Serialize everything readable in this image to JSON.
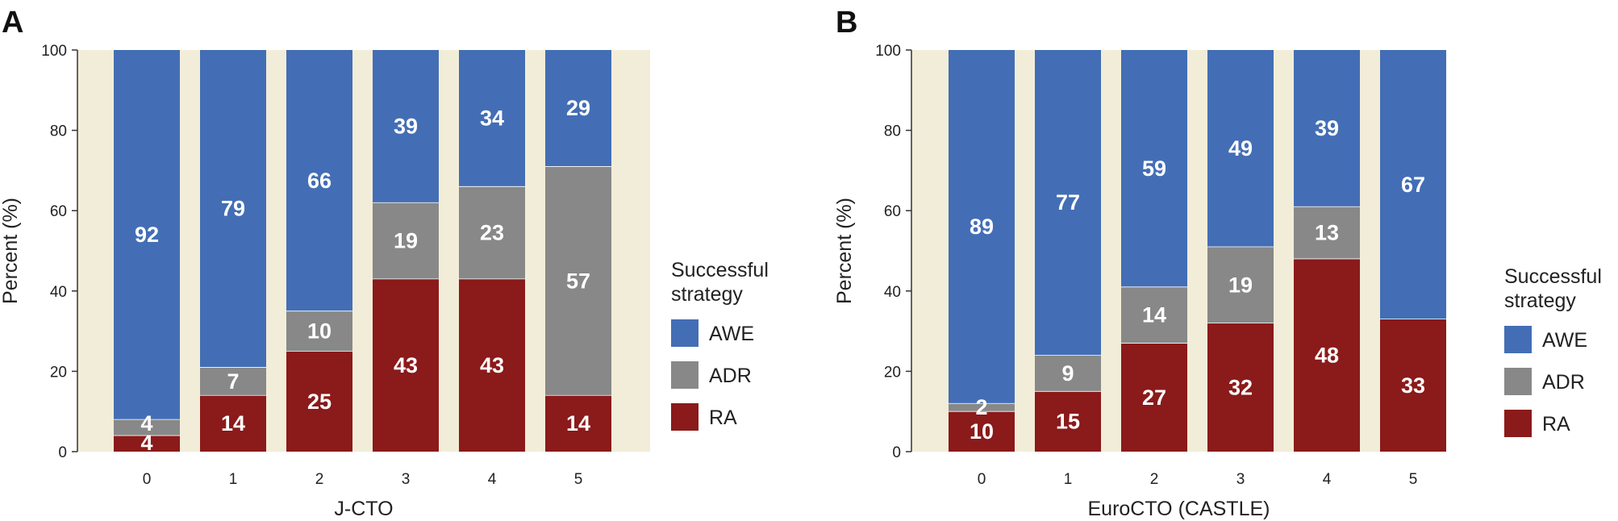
{
  "colors": {
    "AWE": "#436eb5",
    "ADR": "#888888",
    "RA": "#8b1a1a",
    "plot_background": "#f2edd8",
    "separator": "#ffffff",
    "data_label": "#ffffff",
    "text": "#222222"
  },
  "chart_data": [
    {
      "panel_label": "A",
      "type": "bar",
      "stacked": true,
      "xlabel": "J-CTO",
      "ylabel": "Percent (%)",
      "ylim": [
        0,
        100
      ],
      "yticks": [
        0,
        20,
        40,
        60,
        80,
        100
      ],
      "categories": [
        "0",
        "1",
        "2",
        "3",
        "4",
        "5"
      ],
      "series": [
        {
          "name": "RA",
          "color_key": "RA",
          "values": [
            4,
            14,
            25,
            43,
            43,
            14
          ]
        },
        {
          "name": "ADR",
          "color_key": "ADR",
          "values": [
            4,
            7,
            10,
            19,
            23,
            57
          ]
        },
        {
          "name": "AWE",
          "color_key": "AWE",
          "values": [
            92,
            79,
            66,
            39,
            34,
            29
          ]
        }
      ],
      "legend": {
        "title": "Successful strategy",
        "title_lines": [
          "Successful",
          "strategy"
        ],
        "position": "right",
        "entries": [
          "AWE",
          "ADR",
          "RA"
        ]
      }
    },
    {
      "panel_label": "B",
      "type": "bar",
      "stacked": true,
      "xlabel": "EuroCTO (CASTLE)",
      "ylabel": "Percent (%)",
      "ylim": [
        0,
        100
      ],
      "yticks": [
        0,
        20,
        40,
        60,
        80,
        100
      ],
      "categories": [
        "0",
        "1",
        "2",
        "3",
        "4",
        "5"
      ],
      "series": [
        {
          "name": "RA",
          "color_key": "RA",
          "values": [
            10,
            15,
            27,
            32,
            48,
            33
          ]
        },
        {
          "name": "ADR",
          "color_key": "ADR",
          "values": [
            2,
            9,
            14,
            19,
            13,
            null
          ]
        },
        {
          "name": "AWE",
          "color_key": "AWE",
          "values": [
            89,
            77,
            59,
            49,
            39,
            67
          ]
        }
      ],
      "legend": {
        "title": "Successful strategy",
        "title_lines": [
          "Successful",
          "strategy"
        ],
        "position": "right",
        "entries": [
          "AWE",
          "ADR",
          "RA"
        ]
      }
    }
  ]
}
